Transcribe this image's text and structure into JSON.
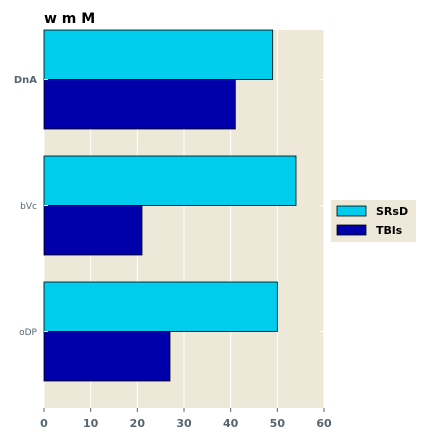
{
  "chart_data": {
    "type": "bar",
    "orientation": "horizontal",
    "title": "w m M",
    "xlabel": "",
    "ylabel": "",
    "categories": [
      "DnA",
      "bVc",
      "oDP"
    ],
    "series": [
      {
        "name": "SRsD",
        "color": "#00ccee",
        "values": [
          49,
          54,
          50
        ]
      },
      {
        "name": "TBls",
        "color": "#0000aa",
        "values": [
          41,
          21,
          27
        ]
      }
    ],
    "xlim": [
      0,
      60
    ],
    "xticks": [
      0,
      10,
      20,
      30,
      40,
      50,
      60
    ],
    "grid": true,
    "legend_position": "right",
    "plot_background": "#eee8d8"
  }
}
